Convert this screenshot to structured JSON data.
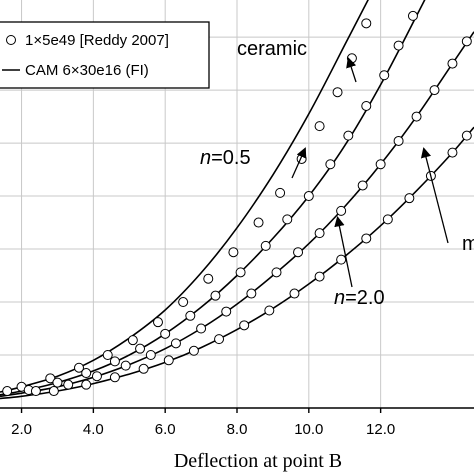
{
  "chart_data": {
    "type": "line",
    "xlabel": "Deflection at point B",
    "xlim": [
      1.4,
      14.6
    ],
    "ylim": [
      0,
      7.7
    ],
    "x_ticks": [
      2.0,
      4.0,
      6.0,
      8.0,
      10.0,
      12.0
    ],
    "x_tick_labels": [
      "2.0",
      "4.0",
      "6.0",
      "8.0",
      "10.0",
      "12.0"
    ],
    "y_gridlines": [
      1.0,
      2.0,
      3.0,
      4.0,
      5.0,
      6.0,
      7.0
    ],
    "grid": true,
    "legend": {
      "placement": "top-left",
      "entries": [
        {
          "marker": "circle",
          "label": "1×5e49 [Reddy 2007]"
        },
        {
          "marker": "line",
          "label": "CAM 6×30e16 (FI)"
        }
      ]
    },
    "series": [
      {
        "name": "ceramic",
        "curve": [
          [
            1.4,
            0.3
          ],
          [
            2.0,
            0.4
          ],
          [
            3.0,
            0.6
          ],
          [
            4.0,
            0.9
          ],
          [
            5.0,
            1.32
          ],
          [
            6.0,
            1.85
          ],
          [
            7.0,
            2.55
          ],
          [
            8.0,
            3.4
          ],
          [
            9.0,
            4.4
          ],
          [
            10.0,
            5.55
          ],
          [
            11.0,
            6.85
          ],
          [
            11.8,
            7.9
          ]
        ],
        "points": [
          [
            1.6,
            0.32
          ],
          [
            2.0,
            0.4
          ],
          [
            2.8,
            0.56
          ],
          [
            3.6,
            0.76
          ],
          [
            4.4,
            1.0
          ],
          [
            5.1,
            1.28
          ],
          [
            5.8,
            1.62
          ],
          [
            6.5,
            2.0
          ],
          [
            7.2,
            2.44
          ],
          [
            7.9,
            2.94
          ],
          [
            8.6,
            3.5
          ],
          [
            9.2,
            4.06
          ],
          [
            9.8,
            4.7
          ],
          [
            10.3,
            5.32
          ],
          [
            10.8,
            5.96
          ],
          [
            11.2,
            6.6
          ],
          [
            11.6,
            7.26
          ],
          [
            11.9,
            7.8
          ]
        ]
      },
      {
        "name": "n=0.5",
        "curve": [
          [
            1.4,
            0.25
          ],
          [
            2.0,
            0.32
          ],
          [
            3.0,
            0.48
          ],
          [
            4.0,
            0.7
          ],
          [
            5.0,
            1.0
          ],
          [
            6.0,
            1.4
          ],
          [
            7.0,
            1.9
          ],
          [
            8.0,
            2.5
          ],
          [
            9.0,
            3.2
          ],
          [
            10.0,
            4.0
          ],
          [
            11.0,
            4.95
          ],
          [
            12.0,
            6.1
          ],
          [
            13.0,
            7.4
          ],
          [
            13.3,
            7.8
          ]
        ],
        "points": [
          [
            2.2,
            0.34
          ],
          [
            3.0,
            0.48
          ],
          [
            3.8,
            0.66
          ],
          [
            4.6,
            0.88
          ],
          [
            5.3,
            1.12
          ],
          [
            6.0,
            1.4
          ],
          [
            6.7,
            1.74
          ],
          [
            7.4,
            2.12
          ],
          [
            8.1,
            2.56
          ],
          [
            8.8,
            3.06
          ],
          [
            9.4,
            3.56
          ],
          [
            10.0,
            4.0
          ],
          [
            10.6,
            4.6
          ],
          [
            11.1,
            5.14
          ],
          [
            11.6,
            5.7
          ],
          [
            12.1,
            6.28
          ],
          [
            12.5,
            6.84
          ],
          [
            12.9,
            7.4
          ],
          [
            13.2,
            7.82
          ]
        ]
      },
      {
        "name": "",
        "curve": [
          [
            1.4,
            0.22
          ],
          [
            2.0,
            0.28
          ],
          [
            3.0,
            0.4
          ],
          [
            4.0,
            0.58
          ],
          [
            5.0,
            0.82
          ],
          [
            6.0,
            1.12
          ],
          [
            7.0,
            1.5
          ],
          [
            8.0,
            1.96
          ],
          [
            9.0,
            2.5
          ],
          [
            10.0,
            3.1
          ],
          [
            11.0,
            3.8
          ],
          [
            12.0,
            4.6
          ],
          [
            13.0,
            5.5
          ],
          [
            14.0,
            6.5
          ],
          [
            14.6,
            7.1
          ]
        ],
        "points": [
          [
            2.4,
            0.32
          ],
          [
            3.3,
            0.44
          ],
          [
            4.1,
            0.6
          ],
          [
            4.9,
            0.8
          ],
          [
            5.6,
            1.0
          ],
          [
            6.3,
            1.22
          ],
          [
            7.0,
            1.5
          ],
          [
            7.7,
            1.82
          ],
          [
            8.4,
            2.16
          ],
          [
            9.1,
            2.56
          ],
          [
            9.7,
            2.94
          ],
          [
            10.3,
            3.3
          ],
          [
            10.9,
            3.72
          ],
          [
            11.5,
            4.2
          ],
          [
            12.0,
            4.6
          ],
          [
            12.5,
            5.04
          ],
          [
            13.0,
            5.5
          ],
          [
            13.5,
            6.0
          ],
          [
            14.0,
            6.5
          ],
          [
            14.4,
            6.92
          ]
        ]
      },
      {
        "name": "",
        "curve": [
          [
            1.4,
            0.18
          ],
          [
            2.0,
            0.22
          ],
          [
            3.0,
            0.32
          ],
          [
            4.0,
            0.46
          ],
          [
            5.0,
            0.64
          ],
          [
            6.0,
            0.86
          ],
          [
            7.0,
            1.14
          ],
          [
            8.0,
            1.48
          ],
          [
            9.0,
            1.88
          ],
          [
            10.0,
            2.34
          ],
          [
            11.0,
            2.86
          ],
          [
            12.0,
            3.44
          ],
          [
            13.0,
            4.1
          ],
          [
            14.0,
            4.82
          ],
          [
            14.6,
            5.3
          ]
        ],
        "points": [
          [
            2.9,
            0.32
          ],
          [
            3.8,
            0.44
          ],
          [
            4.6,
            0.58
          ],
          [
            5.4,
            0.74
          ],
          [
            6.1,
            0.9
          ],
          [
            6.8,
            1.08
          ],
          [
            7.5,
            1.3
          ],
          [
            8.2,
            1.56
          ],
          [
            8.9,
            1.84
          ],
          [
            9.6,
            2.16
          ],
          [
            10.3,
            2.48
          ],
          [
            10.9,
            2.8
          ],
          [
            11.6,
            3.2
          ],
          [
            12.2,
            3.56
          ],
          [
            12.8,
            3.96
          ],
          [
            13.4,
            4.38
          ],
          [
            14.0,
            4.82
          ],
          [
            14.4,
            5.14
          ]
        ]
      }
    ],
    "annotations": [
      {
        "prefix": "",
        "italic": "",
        "rest": "ceramic",
        "target": [
          11.1,
          6.6
        ]
      },
      {
        "prefix": "",
        "italic": "n",
        "rest": "=0.5",
        "target": [
          9.9,
          4.9
        ]
      },
      {
        "prefix": "",
        "italic": "n",
        "rest": "=2.0",
        "target": [
          10.8,
          3.6
        ]
      },
      {
        "prefix": "",
        "italic": "",
        "rest": "m",
        "target": [
          13.2,
          4.9
        ]
      }
    ]
  }
}
